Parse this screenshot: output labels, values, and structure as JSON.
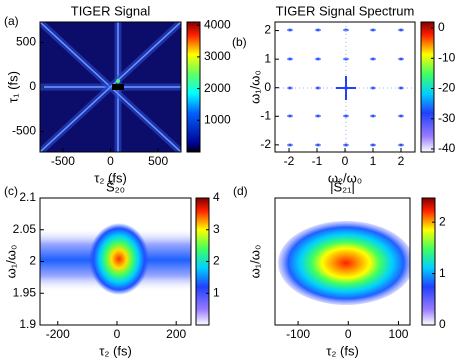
{
  "chart_data": [
    {
      "type": "heatmap",
      "panel": "(a)",
      "title": "TIGER Signal",
      "xlabel": "τ₂ (fs)",
      "ylabel": "τ₁ (fs)",
      "xlim": [
        -740,
        740
      ],
      "ylim": [
        -730,
        730
      ],
      "xticks": [
        -500,
        0,
        500
      ],
      "yticks": [
        -500,
        0,
        500
      ],
      "colormap": "jet",
      "clim": [
        0,
        4100
      ],
      "cticks": [
        1000,
        2000,
        3000,
        4000
      ]
    },
    {
      "type": "heatmap",
      "panel": "(b)",
      "title": "TIGER Signal Spectrum",
      "xlabel": "ω₂/ω₀",
      "ylabel": "ω₁/ω₀",
      "xlim": [
        -2.5,
        2.5
      ],
      "ylim": [
        -2.25,
        2.3
      ],
      "xticks": [
        -2,
        -1,
        0,
        1,
        2
      ],
      "yticks": [
        -2,
        -1,
        0,
        1,
        2
      ],
      "colormap": "jet-white",
      "clim": [
        -41,
        2
      ],
      "cticks": [
        -40,
        -30,
        -20,
        -10,
        0
      ]
    },
    {
      "type": "heatmap",
      "panel": "(c)",
      "title": "S̃₂₀",
      "xlabel": "τ₂ (fs)",
      "ylabel": "ω₁/ω₀",
      "xlim": [
        -260,
        250
      ],
      "ylim": [
        1.9,
        2.1
      ],
      "xticks": [
        -200,
        0,
        200
      ],
      "yticks": [
        1.9,
        1.95,
        2,
        2.05,
        2.1
      ],
      "colormap": "jet-white",
      "clim": [
        0,
        4
      ],
      "cticks": [
        1,
        2,
        3,
        4
      ]
    },
    {
      "type": "heatmap",
      "panel": "(d)",
      "title": "|S̃₂₁|",
      "xlabel": "τ₂ (fs)",
      "ylabel": "ω₁/ω₀",
      "xlim": [
        -146,
        123
      ],
      "ylim": [
        1.9,
        2.1
      ],
      "xticks": [
        -100,
        0,
        100
      ],
      "colormap": "jet-white",
      "clim": [
        0,
        2.47
      ],
      "cticks": [
        0,
        1,
        2
      ]
    }
  ]
}
